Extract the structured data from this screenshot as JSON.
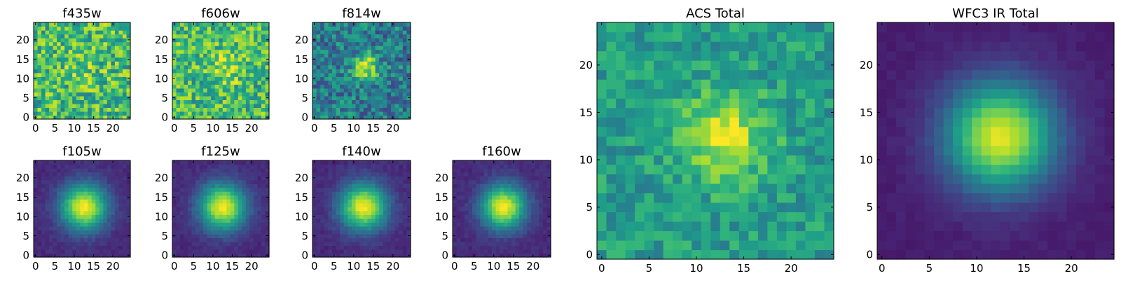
{
  "colormap": "viridis",
  "colors": {
    "viridis": [
      "#440154",
      "#482878",
      "#3e4989",
      "#31688e",
      "#26828e",
      "#1f9e89",
      "#35b779",
      "#6ece58",
      "#b5de2b",
      "#fde725"
    ],
    "axis": "#000000",
    "background": "#ffffff"
  },
  "chart_data": [
    {
      "type": "heatmap",
      "title": "f435w",
      "shape": [
        25,
        25
      ],
      "xlim": [
        0,
        24
      ],
      "ylim": [
        0,
        24
      ],
      "xticks": [
        0,
        5,
        10,
        15,
        20
      ],
      "yticks": [
        0,
        5,
        10,
        15,
        20
      ],
      "peak": [
        12,
        12
      ],
      "sigma": 3.0,
      "amplitude": 0.1,
      "background": 0.68,
      "noise": 0.26,
      "color_range": [
        0,
        1
      ]
    },
    {
      "type": "heatmap",
      "title": "f606w",
      "shape": [
        25,
        25
      ],
      "xlim": [
        0,
        24
      ],
      "ylim": [
        0,
        24
      ],
      "xticks": [
        0,
        5,
        10,
        15,
        20
      ],
      "yticks": [
        0,
        5,
        10,
        15,
        20
      ],
      "peak": [
        13,
        13
      ],
      "sigma": 3.0,
      "amplitude": 0.2,
      "background": 0.68,
      "noise": 0.24,
      "color_range": [
        0,
        1
      ]
    },
    {
      "type": "heatmap",
      "title": "f814w",
      "shape": [
        25,
        25
      ],
      "xlim": [
        0,
        24
      ],
      "ylim": [
        0,
        24
      ],
      "xticks": [
        0,
        5,
        10,
        15,
        20
      ],
      "yticks": [
        0,
        5,
        10,
        15,
        20
      ],
      "peak": [
        13,
        13
      ],
      "sigma": 2.2,
      "amplitude": 0.55,
      "background": 0.42,
      "noise": 0.22,
      "color_range": [
        0,
        1
      ]
    },
    {
      "type": "heatmap",
      "title": "f105w",
      "shape": [
        25,
        25
      ],
      "xlim": [
        0,
        24
      ],
      "ylim": [
        0,
        24
      ],
      "xticks": [
        0,
        5,
        10,
        15,
        20
      ],
      "yticks": [
        0,
        5,
        10,
        15,
        20
      ],
      "peak": [
        12.5,
        12.5
      ],
      "sigma": 4.2,
      "amplitude": 0.86,
      "background": 0.12,
      "noise": 0.04,
      "color_range": [
        0,
        1
      ]
    },
    {
      "type": "heatmap",
      "title": "f125w",
      "shape": [
        25,
        25
      ],
      "xlim": [
        0,
        24
      ],
      "ylim": [
        0,
        24
      ],
      "xticks": [
        0,
        5,
        10,
        15,
        20
      ],
      "yticks": [
        0,
        5,
        10,
        15,
        20
      ],
      "peak": [
        12.5,
        12.5
      ],
      "sigma": 4.2,
      "amplitude": 0.86,
      "background": 0.12,
      "noise": 0.04,
      "color_range": [
        0,
        1
      ]
    },
    {
      "type": "heatmap",
      "title": "f140w",
      "shape": [
        25,
        25
      ],
      "xlim": [
        0,
        24
      ],
      "ylim": [
        0,
        24
      ],
      "xticks": [
        0,
        5,
        10,
        15,
        20
      ],
      "yticks": [
        0,
        5,
        10,
        15,
        20
      ],
      "peak": [
        12.5,
        12.5
      ],
      "sigma": 4.2,
      "amplitude": 0.86,
      "background": 0.12,
      "noise": 0.04,
      "color_range": [
        0,
        1
      ]
    },
    {
      "type": "heatmap",
      "title": "f160w",
      "shape": [
        25,
        25
      ],
      "xlim": [
        0,
        24
      ],
      "ylim": [
        0,
        24
      ],
      "xticks": [
        0,
        5,
        10,
        15,
        20
      ],
      "yticks": [
        0,
        5,
        10,
        15,
        20
      ],
      "peak": [
        12.5,
        12.5
      ],
      "sigma": 4.0,
      "amplitude": 0.86,
      "background": 0.12,
      "noise": 0.04,
      "color_range": [
        0,
        1
      ]
    },
    {
      "type": "heatmap",
      "title": "ACS Total",
      "shape": [
        25,
        25
      ],
      "xlim": [
        0,
        24
      ],
      "ylim": [
        0,
        24
      ],
      "xticks": [
        0,
        5,
        10,
        15,
        20
      ],
      "yticks": [
        0,
        5,
        10,
        15,
        20
      ],
      "peak": [
        13,
        12.5
      ],
      "sigma": 3.2,
      "amplitude": 0.4,
      "background": 0.55,
      "noise": 0.14,
      "color_range": [
        0,
        1
      ]
    },
    {
      "type": "heatmap",
      "title": "WFC3 IR Total",
      "shape": [
        25,
        25
      ],
      "xlim": [
        0,
        24
      ],
      "ylim": [
        0,
        24
      ],
      "xticks": [
        0,
        5,
        10,
        15,
        20
      ],
      "yticks": [
        0,
        5,
        10,
        15,
        20
      ],
      "peak": [
        12.5,
        12.5
      ],
      "sigma": 4.0,
      "amplitude": 0.88,
      "background": 0.08,
      "noise": 0.02,
      "color_range": [
        0,
        1
      ]
    }
  ]
}
